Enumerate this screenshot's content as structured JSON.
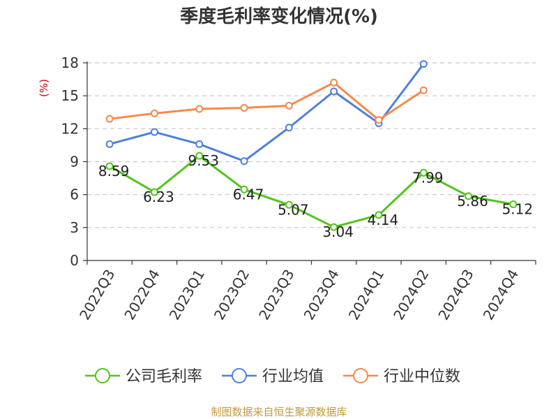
{
  "chart_data": {
    "type": "line",
    "title": "季度毛利率变化情况(%)",
    "ylabel": "(%)",
    "xlabel": "",
    "categories": [
      "2022Q3",
      "2022Q4",
      "2023Q1",
      "2023Q2",
      "2023Q3",
      "2023Q4",
      "2024Q1",
      "2024Q2",
      "2024Q3",
      "2024Q4"
    ],
    "ylim": [
      0,
      18
    ],
    "yticks": [
      0,
      3,
      6,
      9,
      12,
      15,
      18
    ],
    "grid": true,
    "legend_position": "bottom",
    "series": [
      {
        "name": "公司毛利率",
        "color": "#52c41a",
        "values": [
          8.59,
          6.23,
          9.53,
          6.47,
          5.07,
          3.04,
          4.14,
          7.99,
          5.86,
          5.12
        ],
        "data_labels": [
          "8.59",
          "6.23",
          "9.53",
          "6.47",
          "5.07",
          "3.04",
          "4.14",
          "7.99",
          "5.86",
          "5.12"
        ]
      },
      {
        "name": "行业均值",
        "color": "#4e7fdc",
        "values": [
          10.6,
          11.7,
          10.6,
          9.05,
          12.1,
          15.4,
          12.5,
          17.9,
          null,
          null
        ]
      },
      {
        "name": "行业中位数",
        "color": "#f6894c",
        "values": [
          12.9,
          13.4,
          13.8,
          13.9,
          14.1,
          16.2,
          12.8,
          15.5,
          null,
          null
        ]
      }
    ]
  },
  "colors": {
    "axis": "#333333",
    "grid": "#c8c8c8",
    "unit_label": "#cc0000",
    "source_text": "#c09a3c"
  },
  "source": "制图数据来自恒生聚源数据库"
}
